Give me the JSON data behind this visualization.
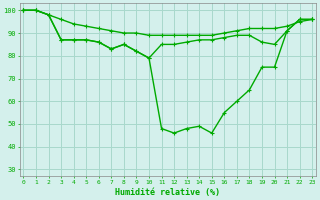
{
  "xlabel": "Humidité relative (%)",
  "background_color": "#d4f0ec",
  "grid_color": "#a8d8cc",
  "line_color": "#00aa00",
  "markersize": 2.5,
  "linewidth": 1.0,
  "ylim": [
    27,
    103
  ],
  "xlim": [
    -0.3,
    23.3
  ],
  "yticks": [
    30,
    40,
    50,
    60,
    70,
    80,
    90,
    100
  ],
  "xticks": [
    0,
    1,
    2,
    3,
    4,
    5,
    6,
    7,
    8,
    9,
    10,
    11,
    12,
    13,
    14,
    15,
    16,
    17,
    18,
    19,
    20,
    21,
    22,
    23
  ],
  "series1": [
    100,
    100,
    98,
    96,
    94,
    93,
    92,
    91,
    90,
    90,
    89,
    89,
    89,
    89,
    89,
    89,
    90,
    91,
    92,
    92,
    92,
    93,
    95,
    96
  ],
  "series2": [
    100,
    100,
    98,
    87,
    87,
    87,
    86,
    83,
    85,
    82,
    79,
    85,
    85,
    86,
    87,
    87,
    88,
    89,
    89,
    86,
    85,
    91,
    96,
    96
  ],
  "series3": [
    100,
    100,
    98,
    87,
    87,
    87,
    86,
    83,
    85,
    82,
    79,
    48,
    46,
    48,
    49,
    46,
    55,
    60,
    65,
    75,
    75,
    91,
    96,
    96
  ]
}
